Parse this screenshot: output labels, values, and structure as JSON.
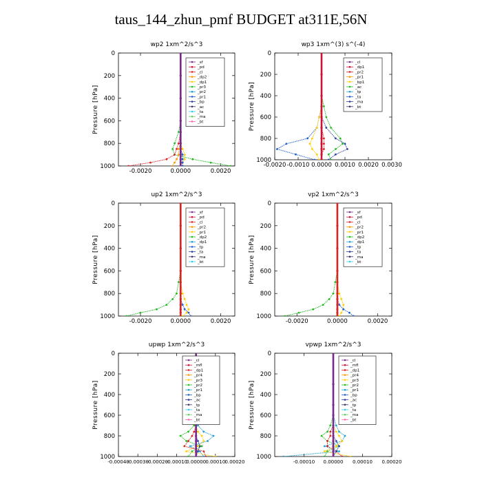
{
  "figure": {
    "title": "taus_144_zhun_pmf  BUDGET at311E,56N"
  },
  "chart_data": [
    {
      "type": "line",
      "panel_title": "wp2   1xm^2/s^3",
      "ylabel": "Pressure [hPa]",
      "ylim": [
        1000,
        0
      ],
      "y_ticks": [
        0,
        200,
        400,
        600,
        800,
        1000
      ],
      "xlim": [
        -0.0031,
        0.0027
      ],
      "x_ticks": [
        -0.002,
        0.0,
        0.002
      ],
      "x_tick_labels": [
        "-0.0020",
        "0.0000",
        "0.0020"
      ],
      "legend": [
        "_sf",
        "_pd",
        "_cl",
        "_dp2",
        "_dp1",
        "_pr3",
        "_pr2",
        "_pr1",
        "_bp",
        "_ac",
        "_ta",
        "_ma",
        "_bt"
      ],
      "y": [
        0,
        200,
        400,
        600,
        700,
        800,
        850,
        900,
        940,
        970,
        1000
      ],
      "series": [
        {
          "name": "_bp",
          "color": "#22bb22",
          "values": [
            0,
            0,
            0,
            0,
            -0.0001,
            -0.0003,
            -0.0004,
            -0.0003,
            0.0006,
            0.0015,
            0.0025
          ]
        },
        {
          "name": "_pr1",
          "color": "#ffcc00",
          "values": [
            0,
            0,
            0,
            0,
            0,
            0,
            0.0001,
            0.0002,
            0.0002,
            0.0001,
            0
          ]
        },
        {
          "name": "_dp1",
          "color": "#dd2222",
          "values": [
            0,
            0,
            0,
            0,
            0,
            -0.0001,
            -0.0002,
            -0.0003,
            -0.0007,
            -0.0015,
            -0.0026
          ]
        },
        {
          "name": "_pr3",
          "color": "#ff9900",
          "values": [
            0,
            0,
            0,
            0,
            0,
            0,
            -0.0001,
            -0.0001,
            -0.0002,
            -0.0003,
            -0.0004
          ]
        },
        {
          "name": "_ta",
          "color": "#1f5fd0",
          "values": [
            0,
            0,
            0,
            0,
            0,
            0,
            0,
            0.0001,
            0.0001,
            0.0001,
            0.0001
          ]
        },
        {
          "name": "_pd",
          "color": "#7a2a8a",
          "values": [
            0,
            0,
            0,
            0,
            0,
            0,
            0,
            0,
            0,
            0,
            0
          ]
        }
      ]
    },
    {
      "type": "line",
      "panel_title": "wp3   1xm^(3) s^(-4)",
      "ylabel": "Pressure [hPa]",
      "ylim": [
        1000,
        0
      ],
      "y_ticks": [
        0,
        200,
        400,
        600,
        800,
        1000
      ],
      "xlim": [
        -0.002,
        0.003
      ],
      "x_ticks": [
        -0.002,
        -0.001,
        0.0,
        0.001,
        0.002,
        0.003
      ],
      "x_tick_labels": [
        "-0.0020",
        "-0.0010",
        "0.0000",
        "0.0010",
        "0.0020",
        "0.0030"
      ],
      "legend": [
        "_cl",
        "_dp1",
        "_pr2",
        "_pr1",
        "_bp1",
        "_ac",
        "_tp",
        "_ta",
        "_ma",
        "_bt"
      ],
      "y": [
        0,
        200,
        400,
        500,
        600,
        700,
        800,
        850,
        900,
        950,
        1000
      ],
      "series": [
        {
          "name": "_bp1",
          "color": "#22bb22",
          "values": [
            0,
            0,
            0,
            0.0001,
            0.0002,
            0.0004,
            0.0008,
            0.0009,
            0.0006,
            0.0003,
            0.0004
          ]
        },
        {
          "name": "_tp",
          "color": "#1f5fd0",
          "values": [
            0,
            0,
            0,
            0,
            -0.0001,
            -0.0002,
            -0.0006,
            -0.0015,
            -0.0019,
            -0.0011,
            -0.0003
          ]
        },
        {
          "name": "_ta",
          "color": "#2a3fa0",
          "values": [
            0,
            0,
            0,
            0,
            0,
            0.0002,
            0.0006,
            0.001,
            0.0011,
            0.0006,
            0.0003
          ]
        },
        {
          "name": "_pr1",
          "color": "#ffcc00",
          "values": [
            0,
            0,
            0,
            0,
            -0.0001,
            -0.0002,
            -0.0004,
            -0.0005,
            -0.0004,
            -0.0002,
            -0.0001
          ]
        },
        {
          "name": "_dp1",
          "color": "#dd2222",
          "values": [
            0,
            0,
            0,
            0,
            0,
            0,
            0.0001,
            0.0001,
            0.0001,
            0,
            0
          ]
        },
        {
          "name": "_cl",
          "color": "#cc1133",
          "values": [
            0,
            0,
            0,
            0,
            0,
            0,
            0,
            0,
            0,
            0,
            0
          ]
        }
      ]
    },
    {
      "type": "line",
      "panel_title": "up2   1xm^2/s^3",
      "ylabel": "Pressure [hPa]",
      "ylim": [
        1000,
        0
      ],
      "y_ticks": [
        0,
        200,
        400,
        600,
        800,
        1000
      ],
      "xlim": [
        -0.0031,
        0.0027
      ],
      "x_ticks": [
        -0.002,
        0.0,
        0.002
      ],
      "x_tick_labels": [
        "-0.0020",
        "0.0000",
        "0.0020"
      ],
      "legend": [
        "_sf",
        "_pd",
        "_cl",
        "_pr2",
        "_pr1",
        "_dp2",
        "_dp1",
        "_tp",
        "_ta",
        "_ma",
        "_bt"
      ],
      "y": [
        0,
        200,
        400,
        600,
        700,
        800,
        850,
        900,
        940,
        970,
        1000
      ],
      "series": [
        {
          "name": "_dp1",
          "color": "#22bb22",
          "values": [
            0,
            0,
            0,
            0,
            -0.0001,
            -0.0002,
            -0.0004,
            -0.0007,
            -0.0012,
            -0.002,
            -0.0027
          ]
        },
        {
          "name": "_pr1",
          "color": "#ffcc00",
          "values": [
            0,
            0,
            0,
            0,
            0,
            0.0001,
            0.0002,
            0.0003,
            0.0004,
            0.0003,
            0.0001
          ]
        },
        {
          "name": "_tp",
          "color": "#1f5fd0",
          "values": [
            0,
            0,
            0,
            0,
            0,
            0,
            0,
            0.0001,
            0.0002,
            0.0004,
            0.0005
          ]
        },
        {
          "name": "_cl",
          "color": "#dd2222",
          "values": [
            0,
            0,
            0,
            0,
            0,
            0,
            0,
            0,
            0,
            0,
            0
          ]
        }
      ]
    },
    {
      "type": "line",
      "panel_title": "vp2   1xm^2/s^3",
      "ylabel": "Pressure [hPa]",
      "ylim": [
        1000,
        0
      ],
      "y_ticks": [
        0,
        200,
        400,
        600,
        800,
        1000
      ],
      "xlim": [
        -0.0031,
        0.0027
      ],
      "x_ticks": [
        -0.002,
        0.0,
        0.002
      ],
      "x_tick_labels": [
        "-0.0020",
        "0.0000",
        "0.0020"
      ],
      "legend": [
        "_sf",
        "_pd",
        "_cl",
        "_pr2",
        "_pr1",
        "_dp2",
        "_dp1",
        "_tp",
        "_ta",
        "_ma",
        "_bt"
      ],
      "y": [
        0,
        200,
        400,
        600,
        700,
        800,
        850,
        900,
        940,
        970,
        1000
      ],
      "series": [
        {
          "name": "_dp1",
          "color": "#22bb22",
          "values": [
            0,
            0,
            0,
            0,
            -0.0001,
            -0.0002,
            -0.0004,
            -0.0007,
            -0.0012,
            -0.0019,
            -0.0026
          ]
        },
        {
          "name": "_pr1",
          "color": "#ffcc00",
          "values": [
            0,
            0,
            0,
            0,
            0,
            0.0001,
            0.0002,
            0.0003,
            0.0003,
            0.0002,
            0.0001
          ]
        },
        {
          "name": "_tp",
          "color": "#1f5fd0",
          "values": [
            0,
            0,
            0,
            0,
            0,
            0,
            0,
            0.0001,
            0.0003,
            0.0006,
            0.0008
          ]
        },
        {
          "name": "_cl",
          "color": "#dd2222",
          "values": [
            0,
            0,
            0,
            0,
            0,
            0,
            0,
            0,
            0,
            0,
            0
          ]
        }
      ]
    },
    {
      "type": "line",
      "panel_title": "upwp   1xm^2/s^3",
      "ylabel": "Pressure [hPa]",
      "ylim": [
        1000,
        0
      ],
      "y_ticks": [
        0,
        200,
        400,
        600,
        800,
        1000
      ],
      "xlim": [
        -0.0004,
        0.0002
      ],
      "x_ticks": [
        -0.0004,
        -0.0003,
        -0.0002,
        -0.0001,
        0.0,
        0.0001,
        0.0002
      ],
      "x_tick_labels": [
        "-0.00040",
        "-0.00030",
        "-0.00020",
        "-0.00010",
        "0.00000",
        "0.00010",
        "0.00020"
      ],
      "legend": [
        "_cl",
        "_mfl",
        "_dp1",
        "_pr4",
        "_pr3",
        "_pr2",
        "_pr1",
        "_bp",
        "_ac",
        "_tp",
        "_ta",
        "_ma",
        "_bt"
      ],
      "y": [
        0,
        300,
        500,
        600,
        700,
        760,
        800,
        850,
        900,
        950,
        1000
      ],
      "series": [
        {
          "name": "_bp",
          "color": "#22bb22",
          "values": [
            0,
            0,
            0,
            0,
            -1e-05,
            -4e-05,
            -8e-05,
            -5e-05,
            3e-05,
            -2e-05,
            -4e-05
          ]
        },
        {
          "name": "_ac",
          "color": "#1f9fd0",
          "values": [
            0,
            0,
            0,
            0,
            1e-05,
            4e-05,
            9e-05,
            6e-05,
            -3e-05,
            2e-05,
            4e-05
          ]
        },
        {
          "name": "_pr1",
          "color": "#ffcc00",
          "values": [
            0,
            0,
            0,
            0,
            0,
            1e-05,
            3e-05,
            4e-05,
            1e-05,
            -5e-05,
            0.0001
          ]
        },
        {
          "name": "_dp1",
          "color": "#dd2222",
          "values": [
            0,
            0,
            0,
            0,
            0,
            -1e-05,
            -2e-05,
            -4e-05,
            -6e-05,
            4e-05,
            5e-05
          ]
        },
        {
          "name": "_ta",
          "color": "#2a3fa0",
          "values": [
            0,
            0,
            0,
            0,
            0,
            0,
            0,
            1e-05,
            2e-05,
            1e-05,
            0
          ]
        },
        {
          "name": "_cl",
          "color": "#7a2a8a",
          "values": [
            0,
            0,
            0,
            0,
            0,
            0,
            0,
            0,
            0,
            0,
            0
          ]
        }
      ]
    },
    {
      "type": "line",
      "panel_title": "vpwp   1xm^2/s^3",
      "ylabel": "Pressure [hPa]",
      "ylim": [
        1000,
        0
      ],
      "y_ticks": [
        0,
        200,
        400,
        600,
        800,
        1000
      ],
      "xlim": [
        -0.0002,
        0.0002
      ],
      "x_ticks": [
        -0.0001,
        0.0,
        0.0001,
        0.0002
      ],
      "x_tick_labels": [
        "-0.00010",
        "0.00000",
        "0.00010",
        "0.00020"
      ],
      "legend": [
        "_cl",
        "_mfl",
        "_dp1",
        "_pr4",
        "_pr3",
        "_pr2",
        "_pr1",
        "_bp",
        "_ac",
        "_tp",
        "_ta",
        "_ma",
        "_bt"
      ],
      "y": [
        0,
        300,
        500,
        600,
        700,
        760,
        800,
        850,
        900,
        950,
        1000
      ],
      "series": [
        {
          "name": "_bp",
          "color": "#22bb22",
          "values": [
            0,
            0,
            0,
            0,
            -1e-05,
            -2e-05,
            -4e-05,
            -2e-05,
            2e-05,
            -2e-05,
            -3e-05
          ]
        },
        {
          "name": "_ac",
          "color": "#1f9fd0",
          "values": [
            0,
            0,
            0,
            0,
            1e-05,
            2e-05,
            4e-05,
            3e-05,
            -3e-05,
            2e-05,
            -0.00017
          ]
        },
        {
          "name": "_pr1",
          "color": "#ffcc00",
          "values": [
            0,
            0,
            0,
            0,
            0,
            1e-05,
            2e-05,
            3e-05,
            1e-05,
            -3e-05,
            6e-05
          ]
        },
        {
          "name": "_dp1",
          "color": "#dd2222",
          "values": [
            0,
            0,
            0,
            0,
            0,
            -1e-05,
            -1e-05,
            -2e-05,
            -2e-05,
            1e-05,
            3e-05
          ]
        },
        {
          "name": "_ta",
          "color": "#2a3fa0",
          "values": [
            0,
            0,
            0,
            0,
            0,
            0,
            0,
            1e-05,
            2e-05,
            1e-05,
            0
          ]
        },
        {
          "name": "_cl",
          "color": "#7a2a8a",
          "values": [
            0,
            0,
            0,
            0,
            0,
            0,
            0,
            0,
            0,
            0,
            0
          ]
        }
      ]
    }
  ]
}
